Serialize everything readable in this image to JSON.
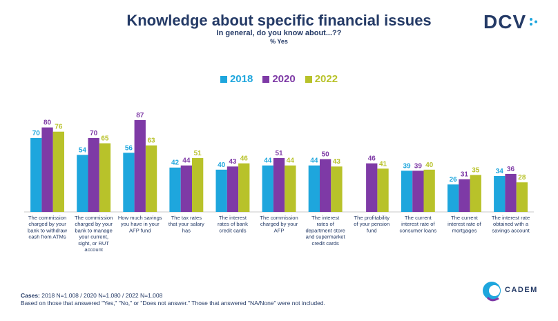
{
  "title": "Knowledge about specific financial issues",
  "subtitle": "In general, do you know about...??",
  "unit": "% Yes",
  "logos": {
    "top": "DCV",
    "bottom": "CADEM"
  },
  "footer": {
    "cases_label": "Cases:",
    "cases_text": "2018 N=1.008 / 2020 N=1.080 / 2022 N=1.008",
    "note": "Based on those that answered \"Yes,\" \"No,\" or \"Does not answer.\" Those that answered \"NA/None\" were not included."
  },
  "chart_data": {
    "type": "bar",
    "categories": [
      "The commission charged by your bank to withdraw cash from ATMs",
      "The commission charged by your bank to manage your current, sight, or RUT account",
      "How much savings you have in your AFP fund",
      "The tax rates that your salary has",
      "The interest rates of bank credit cards",
      "The commission charged by your AFP",
      "The interest rates of department store and supermarket credit cards",
      "The profitability of your pension fund",
      "The current interest rate of consumer loans",
      "The current interest rate of mortgages",
      "The interest rate obtained with a savings account"
    ],
    "series": [
      {
        "name": "2018",
        "color": "#1ea6dd",
        "values": [
          70,
          54,
          56,
          42,
          40,
          44,
          44,
          null,
          39,
          26,
          34
        ]
      },
      {
        "name": "2020",
        "color": "#7e3aa6",
        "values": [
          80,
          70,
          87,
          44,
          43,
          51,
          50,
          46,
          39,
          31,
          36
        ]
      },
      {
        "name": "2022",
        "color": "#b8c22a",
        "values": [
          76,
          65,
          63,
          51,
          46,
          44,
          43,
          41,
          40,
          35,
          28
        ]
      }
    ],
    "ylim": [
      0,
      100
    ],
    "legend_position": "top-center",
    "grid": false
  }
}
